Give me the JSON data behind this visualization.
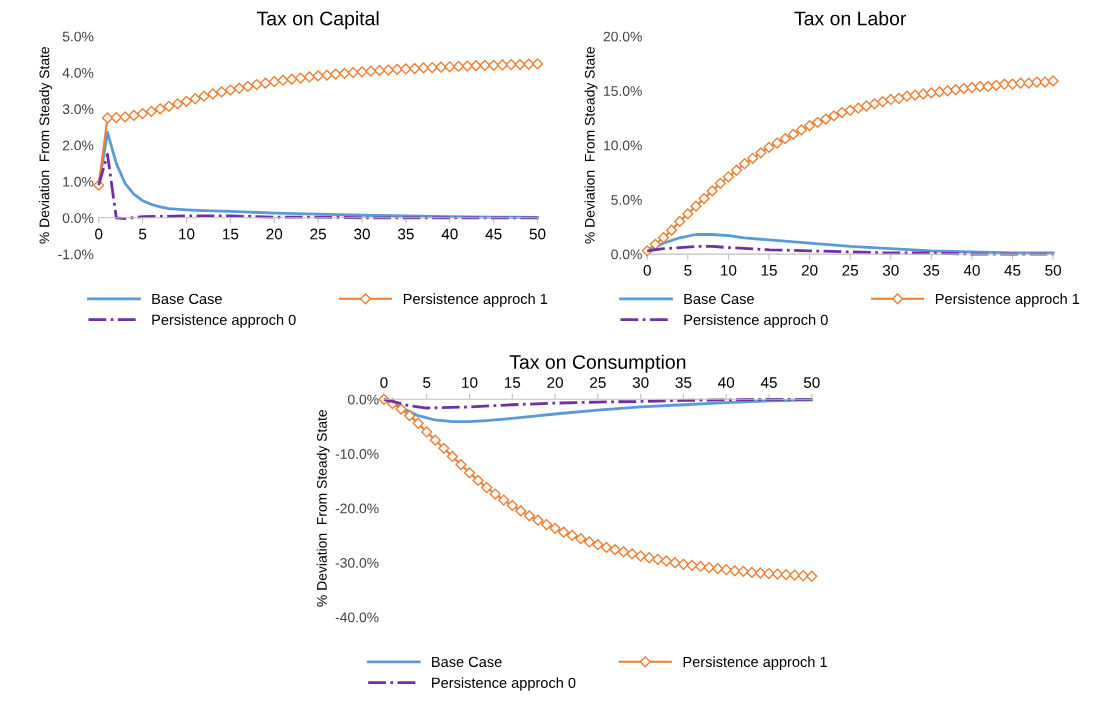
{
  "chart_data": [
    {
      "type": "line",
      "title": "Tax on Capital",
      "ylabel": "% Deviation  From Steady State",
      "xlim": [
        0,
        50
      ],
      "xticks": [
        0,
        5,
        10,
        15,
        20,
        25,
        30,
        35,
        40,
        45,
        50
      ],
      "ylim": [
        -1,
        5
      ],
      "yticks": [
        {
          "value": -1,
          "label": "-1.0%"
        },
        {
          "value": 0,
          "label": "0.0%"
        },
        {
          "value": 1,
          "label": "1.0%"
        },
        {
          "value": 2,
          "label": "2.0%"
        },
        {
          "value": 3,
          "label": "3.0%"
        },
        {
          "value": 4,
          "label": "4.0%"
        },
        {
          "value": 5,
          "label": "5.0%"
        }
      ],
      "grid": false,
      "legend": "bottom",
      "series": [
        {
          "name": "Base Case",
          "color": "#5b9bd5",
          "line_style": "solid",
          "marker": "none",
          "x": [
            0,
            1,
            2,
            3,
            4,
            5,
            6,
            7,
            8,
            10,
            12,
            15,
            20,
            25,
            30,
            35,
            40,
            45,
            50
          ],
          "values": [
            0.9,
            2.35,
            1.5,
            0.95,
            0.65,
            0.47,
            0.37,
            0.3,
            0.25,
            0.22,
            0.2,
            0.18,
            0.13,
            0.1,
            0.07,
            0.05,
            0.03,
            0.02,
            0.01
          ]
        },
        {
          "name": "Persistence approch 1",
          "color": "#ed7d31",
          "line_style": "solid",
          "marker": "diamond",
          "x": [
            0,
            1,
            2,
            3,
            4,
            5,
            6,
            7,
            8,
            9,
            10,
            11,
            12,
            13,
            14,
            15,
            16,
            17,
            18,
            19,
            20,
            21,
            22,
            23,
            24,
            25,
            26,
            27,
            28,
            29,
            30,
            31,
            32,
            33,
            34,
            35,
            36,
            37,
            38,
            39,
            40,
            41,
            42,
            43,
            44,
            45,
            46,
            47,
            48,
            49,
            50
          ],
          "values": [
            0.9,
            2.75,
            2.76,
            2.78,
            2.82,
            2.87,
            2.93,
            3.0,
            3.07,
            3.14,
            3.21,
            3.28,
            3.35,
            3.41,
            3.47,
            3.52,
            3.57,
            3.62,
            3.67,
            3.71,
            3.75,
            3.79,
            3.82,
            3.85,
            3.88,
            3.91,
            3.93,
            3.96,
            3.98,
            4.0,
            4.02,
            4.04,
            4.06,
            4.07,
            4.09,
            4.1,
            4.11,
            4.13,
            4.14,
            4.15,
            4.16,
            4.17,
            4.18,
            4.19,
            4.2,
            4.2,
            4.21,
            4.22,
            4.22,
            4.23,
            4.24
          ]
        },
        {
          "name": "Persistence approch 0",
          "color": "#7030a0",
          "line_style": "dashdot",
          "marker": "none",
          "x": [
            0,
            1,
            2,
            3,
            5,
            10,
            15,
            20,
            25,
            30,
            40,
            50
          ],
          "values": [
            0.9,
            1.75,
            0,
            -0.02,
            0.03,
            0.05,
            0.05,
            0.02,
            0.02,
            0.0,
            0.0,
            0.0
          ]
        }
      ]
    },
    {
      "type": "line",
      "title": "Tax on Labor",
      "ylabel": "% Deviation  From Steady State",
      "xlim": [
        0,
        50
      ],
      "xticks": [
        0,
        5,
        10,
        15,
        20,
        25,
        30,
        35,
        40,
        45,
        50
      ],
      "ylim": [
        0,
        20
      ],
      "yticks": [
        {
          "value": 0,
          "label": "0.0%"
        },
        {
          "value": 5,
          "label": "5.0%"
        },
        {
          "value": 10,
          "label": "10.0%"
        },
        {
          "value": 15,
          "label": "15.0%"
        },
        {
          "value": 20,
          "label": "20.0%"
        }
      ],
      "grid": false,
      "legend": "bottom",
      "series": [
        {
          "name": "Base Case",
          "color": "#5b9bd5",
          "line_style": "solid",
          "marker": "none",
          "x": [
            0,
            2,
            4,
            6,
            8,
            10,
            12,
            15,
            20,
            25,
            30,
            35,
            40,
            45,
            50
          ],
          "values": [
            0.3,
            1.0,
            1.5,
            1.8,
            1.8,
            1.7,
            1.5,
            1.3,
            1.0,
            0.7,
            0.5,
            0.3,
            0.2,
            0.1,
            0.1
          ]
        },
        {
          "name": "Persistence approch 1",
          "color": "#ed7d31",
          "line_style": "solid",
          "marker": "diamond",
          "x": [
            0,
            1,
            2,
            3,
            4,
            5,
            6,
            7,
            8,
            9,
            10,
            11,
            12,
            13,
            14,
            15,
            16,
            17,
            18,
            19,
            20,
            21,
            22,
            23,
            24,
            25,
            26,
            27,
            28,
            29,
            30,
            31,
            32,
            33,
            34,
            35,
            36,
            37,
            38,
            39,
            40,
            41,
            42,
            43,
            44,
            45,
            46,
            47,
            48,
            49,
            50
          ],
          "values": [
            0.3,
            0.9,
            1.5,
            2.2,
            3.0,
            3.7,
            4.4,
            5.1,
            5.8,
            6.5,
            7.1,
            7.7,
            8.3,
            8.8,
            9.3,
            9.8,
            10.2,
            10.6,
            11.0,
            11.4,
            11.8,
            12.1,
            12.4,
            12.7,
            13.0,
            13.2,
            13.4,
            13.6,
            13.8,
            14.0,
            14.2,
            14.3,
            14.5,
            14.6,
            14.7,
            14.8,
            14.9,
            15.0,
            15.1,
            15.2,
            15.3,
            15.4,
            15.4,
            15.5,
            15.6,
            15.6,
            15.7,
            15.7,
            15.8,
            15.8,
            15.9
          ]
        },
        {
          "name": "Persistence approch 0",
          "color": "#7030a0",
          "line_style": "dashdot",
          "marker": "none",
          "x": [
            0,
            2,
            4,
            6,
            8,
            10,
            15,
            20,
            25,
            30,
            35,
            40,
            45,
            50
          ],
          "values": [
            0.3,
            0.5,
            0.6,
            0.7,
            0.7,
            0.6,
            0.4,
            0.3,
            0.2,
            0.1,
            0.1,
            0,
            0,
            0
          ]
        }
      ]
    },
    {
      "type": "line",
      "title": "Tax on Consumption",
      "ylabel": "% Deviation  From Steady State",
      "xlim": [
        0,
        50
      ],
      "xticks": [
        0,
        5,
        10,
        15,
        20,
        25,
        30,
        35,
        40,
        45,
        50
      ],
      "ylim": [
        -40,
        0
      ],
      "yticks": [
        {
          "value": -40,
          "label": "-40.0%"
        },
        {
          "value": -30,
          "label": "-30.0%"
        },
        {
          "value": -20,
          "label": "-20.0%"
        },
        {
          "value": -10,
          "label": "-10.0%"
        },
        {
          "value": 0,
          "label": "0.0%"
        }
      ],
      "grid": false,
      "legend": "bottom",
      "series": [
        {
          "name": "Base Case",
          "color": "#5b9bd5",
          "line_style": "solid",
          "marker": "none",
          "x": [
            0,
            2,
            4,
            6,
            8,
            10,
            12,
            15,
            20,
            25,
            30,
            35,
            40,
            45,
            50
          ],
          "values": [
            0,
            -1.5,
            -3.0,
            -3.8,
            -4.1,
            -4.1,
            -3.9,
            -3.5,
            -2.7,
            -2.0,
            -1.4,
            -1.0,
            -0.6,
            -0.3,
            -0.1
          ]
        },
        {
          "name": "Persistence approch 1",
          "color": "#ed7d31",
          "line_style": "solid",
          "marker": "diamond",
          "x": [
            0,
            1,
            2,
            3,
            4,
            5,
            6,
            7,
            8,
            9,
            10,
            11,
            12,
            13,
            14,
            15,
            16,
            17,
            18,
            19,
            20,
            21,
            22,
            23,
            24,
            25,
            26,
            27,
            28,
            29,
            30,
            31,
            32,
            33,
            34,
            35,
            36,
            37,
            38,
            39,
            40,
            41,
            42,
            43,
            44,
            45,
            46,
            47,
            48,
            49,
            50
          ],
          "values": [
            0,
            -0.8,
            -1.8,
            -3.0,
            -4.4,
            -6.0,
            -7.5,
            -9.0,
            -10.5,
            -12.0,
            -13.5,
            -14.9,
            -16.2,
            -17.4,
            -18.5,
            -19.5,
            -20.5,
            -21.4,
            -22.2,
            -23.0,
            -23.7,
            -24.4,
            -25.0,
            -25.6,
            -26.2,
            -26.7,
            -27.2,
            -27.6,
            -28.0,
            -28.4,
            -28.8,
            -29.1,
            -29.4,
            -29.7,
            -30.0,
            -30.3,
            -30.5,
            -30.7,
            -30.9,
            -31.1,
            -31.3,
            -31.5,
            -31.6,
            -31.8,
            -31.9,
            -32.0,
            -32.1,
            -32.2,
            -32.3,
            -32.4,
            -32.5
          ]
        },
        {
          "name": "Persistence approch 0",
          "color": "#7030a0",
          "line_style": "dashdot",
          "marker": "none",
          "x": [
            0,
            3,
            5,
            10,
            15,
            20,
            25,
            30,
            35,
            40,
            45,
            50
          ],
          "values": [
            0,
            -1.2,
            -1.6,
            -1.4,
            -1.0,
            -0.7,
            -0.5,
            -0.4,
            -0.2,
            -0.1,
            0,
            0
          ]
        }
      ]
    }
  ]
}
